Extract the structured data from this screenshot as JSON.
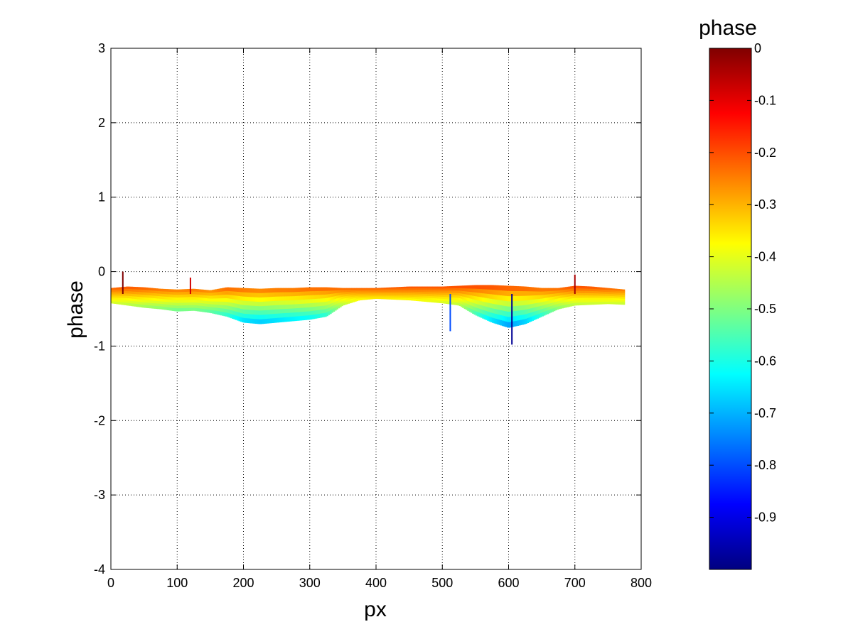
{
  "chart_data": {
    "type": "area",
    "title": "",
    "xlabel": "px",
    "ylabel": "phase",
    "xlim": [
      0,
      800
    ],
    "ylim": [
      -4,
      3
    ],
    "x_ticks": [
      0,
      100,
      200,
      300,
      400,
      500,
      600,
      700,
      800
    ],
    "y_ticks": [
      3,
      2,
      1,
      0,
      -1,
      -2,
      -3,
      -4
    ],
    "grid": true,
    "grid_style": "dotted",
    "x_extent": [
      0,
      775
    ],
    "series": [
      {
        "x": [
          0,
          25,
          50,
          75,
          100,
          125,
          150,
          175,
          200,
          225,
          250,
          275,
          300,
          325,
          350,
          375,
          400,
          425,
          450,
          475,
          500,
          525,
          550,
          575,
          600,
          625,
          650,
          675,
          700,
          725,
          750,
          775
        ],
        "upper": [
          -0.22,
          -0.2,
          -0.21,
          -0.23,
          -0.24,
          -0.23,
          -0.25,
          -0.21,
          -0.22,
          -0.23,
          -0.22,
          -0.22,
          -0.21,
          -0.21,
          -0.22,
          -0.22,
          -0.22,
          -0.21,
          -0.2,
          -0.2,
          -0.2,
          -0.19,
          -0.18,
          -0.18,
          -0.19,
          -0.2,
          -0.22,
          -0.22,
          -0.19,
          -0.2,
          -0.22,
          -0.24
        ],
        "lower": [
          -0.42,
          -0.45,
          -0.48,
          -0.5,
          -0.53,
          -0.52,
          -0.55,
          -0.6,
          -0.68,
          -0.7,
          -0.68,
          -0.66,
          -0.64,
          -0.6,
          -0.45,
          -0.38,
          -0.36,
          -0.37,
          -0.38,
          -0.4,
          -0.42,
          -0.45,
          -0.58,
          -0.68,
          -0.75,
          -0.7,
          -0.6,
          -0.5,
          -0.45,
          -0.44,
          -0.43,
          -0.44
        ]
      }
    ],
    "spikes": [
      {
        "x": 18,
        "y": 0.0
      },
      {
        "x": 120,
        "y": -0.08
      },
      {
        "x": 512,
        "y": -0.8
      },
      {
        "x": 605,
        "y": -0.98
      },
      {
        "x": 700,
        "y": -0.04
      }
    ],
    "colorbar": {
      "label": "phase",
      "range": [
        -1,
        0
      ],
      "ticks": [
        0,
        -0.1,
        -0.2,
        -0.3,
        -0.4,
        -0.5,
        -0.6,
        -0.7,
        -0.8,
        -0.9
      ],
      "tick_labels": [
        "0",
        "-0.1",
        "-0.2",
        "-0.3",
        "-0.4",
        "-0.5",
        "-0.6",
        "-0.7",
        "-0.8",
        "-0.9"
      ],
      "colormap": "jet",
      "colors": [
        "#800000",
        "#ff0000",
        "#ff8000",
        "#ffff00",
        "#80ff80",
        "#00ffff",
        "#0080ff",
        "#0000ff",
        "#000080"
      ]
    }
  }
}
